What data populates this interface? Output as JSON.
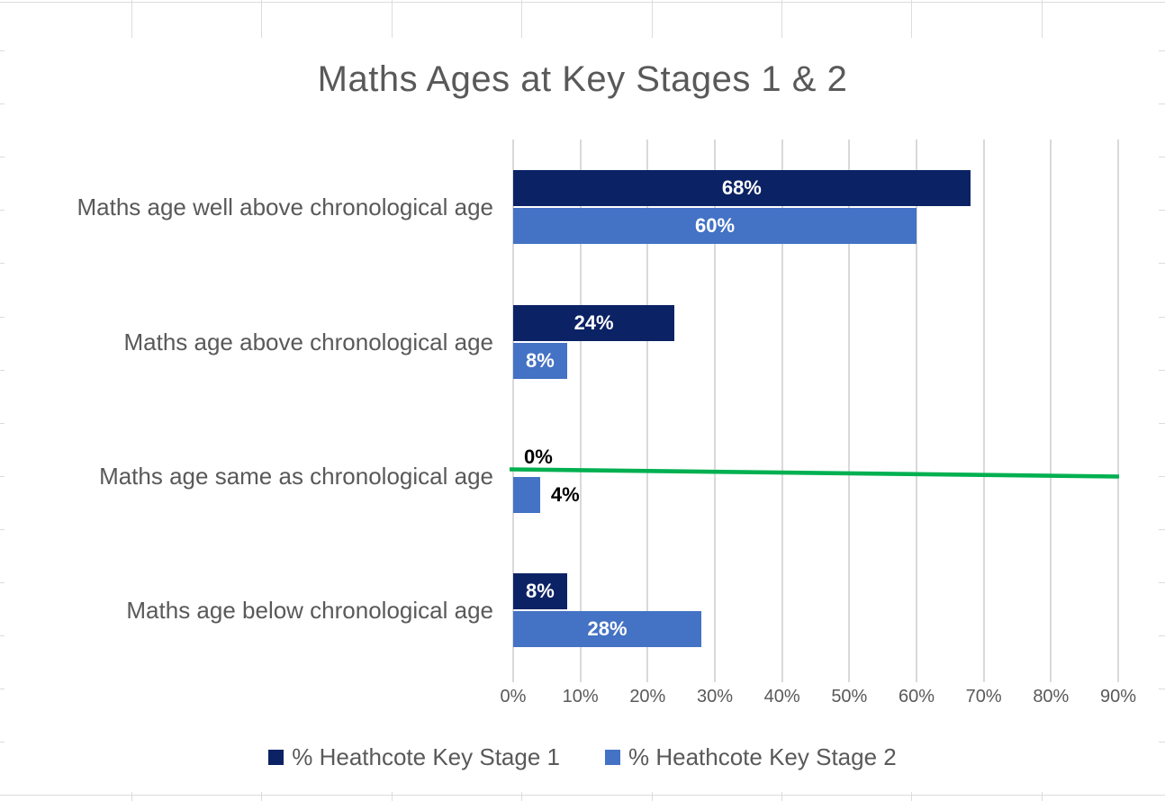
{
  "chart_data": {
    "type": "bar",
    "orientation": "horizontal",
    "title": "Maths Ages at Key Stages 1 & 2",
    "categories": [
      "Maths age well above chronological age",
      "Maths age above chronological age",
      "Maths age same as chronological age",
      "Maths age below chronological age"
    ],
    "series": [
      {
        "name": "% Heathcote Key Stage 1",
        "color": "#0B2265",
        "values": [
          68,
          24,
          0,
          8
        ],
        "labels": [
          "68%",
          "24%",
          "0%",
          "8%"
        ]
      },
      {
        "name": "% Heathcote Key Stage 2",
        "color": "#4472C4",
        "values": [
          60,
          8,
          4,
          28
        ],
        "labels": [
          "60%",
          "8%",
          "4%",
          "28%"
        ]
      }
    ],
    "x_axis": {
      "min": 0,
      "max": 90,
      "tick_step": 10,
      "ticks": [
        "0%",
        "10%",
        "20%",
        "30%",
        "40%",
        "50%",
        "60%",
        "70%",
        "80%",
        "90%"
      ],
      "grid": true
    },
    "annotation_line": {
      "description": "Green reference line across the 'Maths age same as chronological age' row, spanning from 0% to the 90% gridline with a slight downward slope",
      "color": "#00B050",
      "start_percent": 0,
      "end_percent": 90
    },
    "legend": {
      "position": "bottom",
      "entries": [
        "% Heathcote Key Stage 1",
        "% Heathcote Key Stage 2"
      ]
    },
    "data_label_colors": {
      "inside_bar": "#FFFFFF",
      "outside_bar": "#000000"
    },
    "text_color": "#595959",
    "gridline_color": "#D9D9D9",
    "background": "#FFFFFF"
  }
}
